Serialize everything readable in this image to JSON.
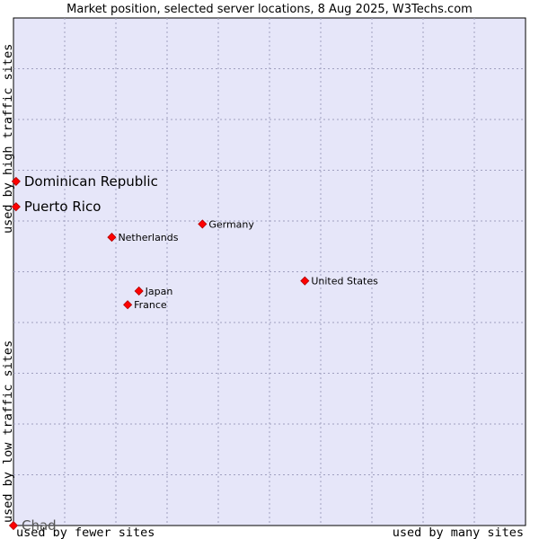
{
  "chart_data": {
    "type": "scatter",
    "title": "Market position, selected server locations, 8 Aug 2025, W3Techs.com",
    "xlabel_low": "used by fewer sites",
    "xlabel_high": "used by many sites",
    "ylabel_low": "used by low traffic sites",
    "ylabel_high": "used by high traffic sites",
    "xlim": [
      0,
      100
    ],
    "ylim": [
      0,
      100
    ],
    "grid": true,
    "colors": {
      "plot_bg": "#e6e6f9",
      "marker": "#ff0000",
      "marker_edge": "#b00000",
      "grid": "#a0a0c0"
    },
    "points": [
      {
        "label": "Dominican Republic",
        "x": 0.5,
        "y": 67.8,
        "emphasis": "large"
      },
      {
        "label": "Puerto Rico",
        "x": 0.5,
        "y": 62.8,
        "emphasis": "large"
      },
      {
        "label": "Germany",
        "x": 36.9,
        "y": 59.4,
        "emphasis": "small"
      },
      {
        "label": "Netherlands",
        "x": 19.2,
        "y": 56.8,
        "emphasis": "small"
      },
      {
        "label": "United States",
        "x": 56.9,
        "y": 48.2,
        "emphasis": "small"
      },
      {
        "label": "Japan",
        "x": 24.5,
        "y": 46.2,
        "emphasis": "small"
      },
      {
        "label": "France",
        "x": 22.3,
        "y": 43.5,
        "emphasis": "small"
      },
      {
        "label": "Chad",
        "x": 0.0,
        "y": 0.0,
        "emphasis": "muted"
      }
    ]
  }
}
